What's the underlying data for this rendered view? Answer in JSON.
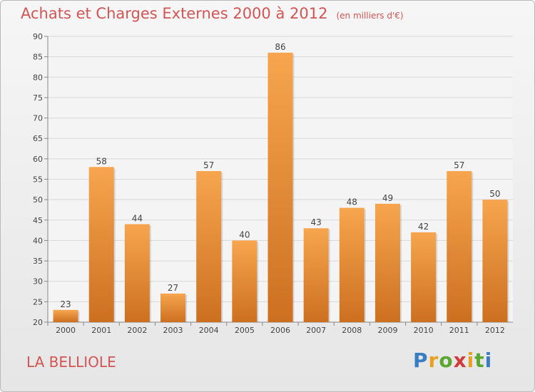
{
  "title": "Achats et Charges Externes 2000 à 2012",
  "unit": "(en milliers d'€)",
  "place": "LA BELLIOLE",
  "logo": {
    "text": "Proxiti",
    "colors": [
      "#3b7dc4",
      "#e8a020",
      "#5aa832",
      "#d03c3c",
      "#e8a020",
      "#5aa832",
      "#3b7dc4"
    ]
  },
  "colors": {
    "bar_top": "#f7a54e",
    "bar_bottom": "#cc7020",
    "title": "#d35454",
    "grid": "#d8d8d8"
  },
  "chart_data": {
    "type": "bar",
    "categories": [
      "2000",
      "2001",
      "2002",
      "2003",
      "2004",
      "2005",
      "2006",
      "2007",
      "2008",
      "2009",
      "2010",
      "2011",
      "2012"
    ],
    "values": [
      23,
      58,
      44,
      27,
      57,
      40,
      86,
      43,
      48,
      49,
      42,
      57,
      50
    ],
    "ylim": [
      20,
      90
    ],
    "yticks": [
      20,
      25,
      30,
      35,
      40,
      45,
      50,
      55,
      60,
      65,
      70,
      75,
      80,
      85,
      90
    ],
    "grid": true
  }
}
